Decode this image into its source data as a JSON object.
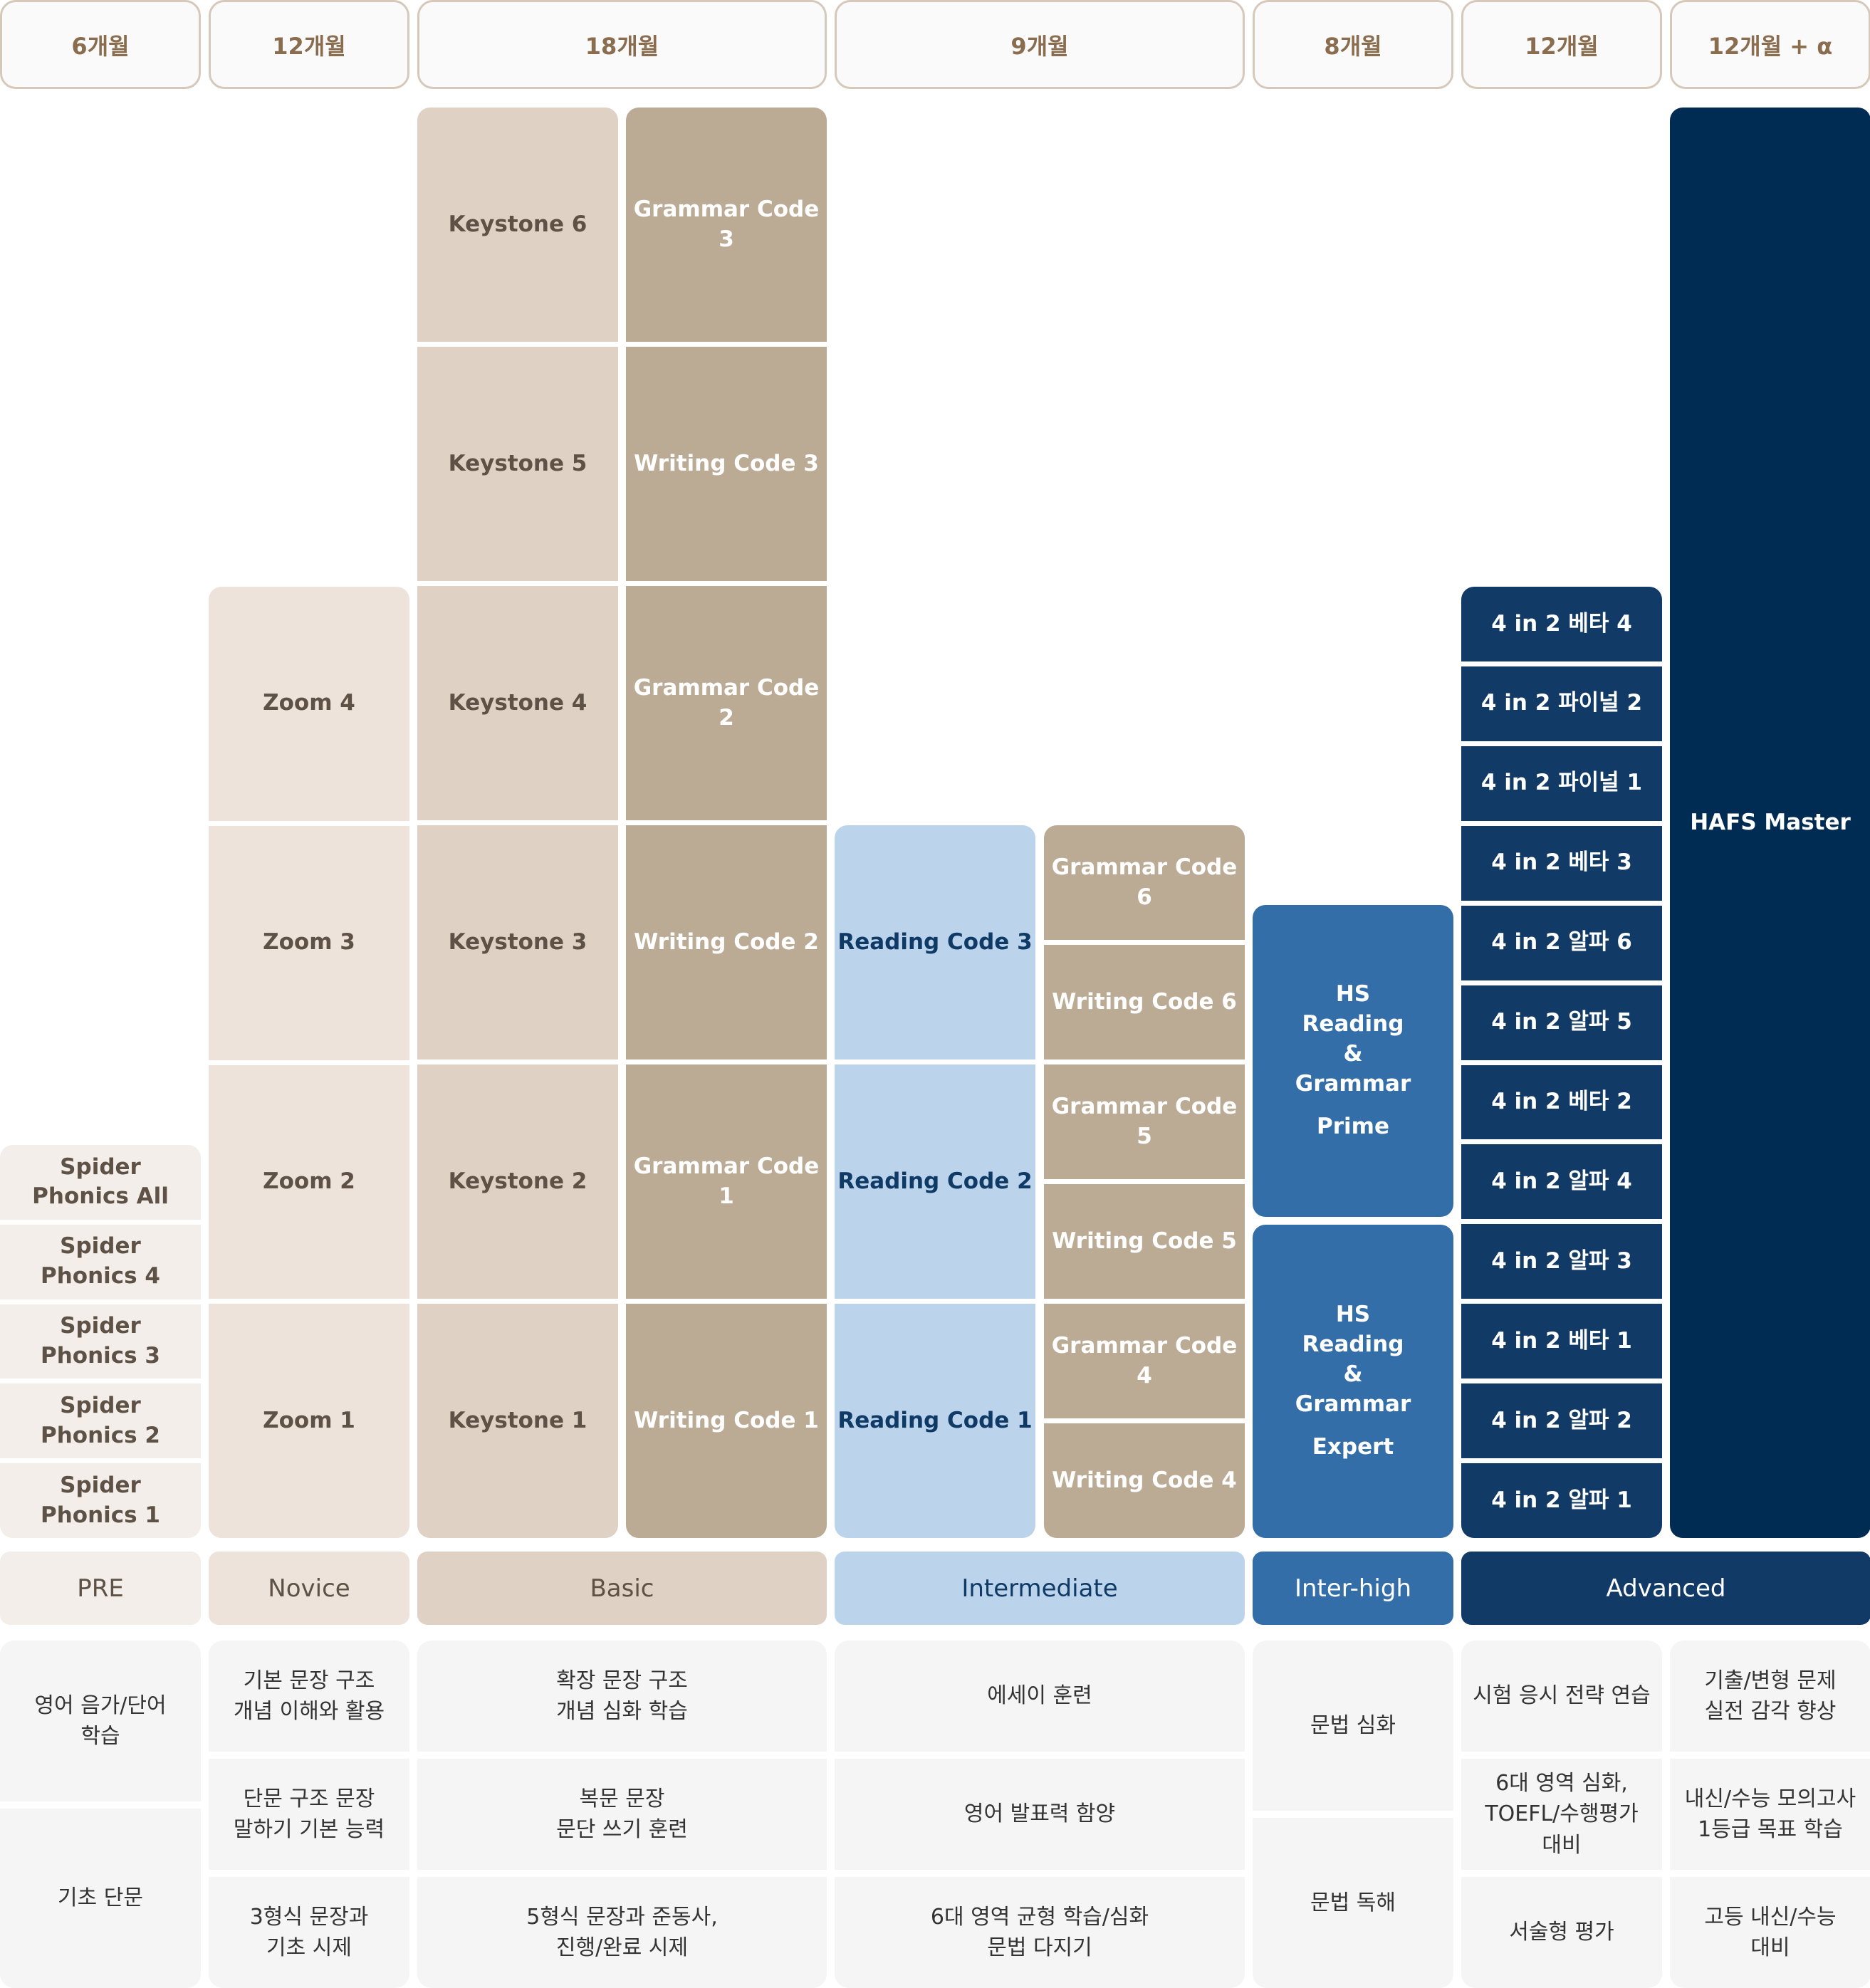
{
  "durations": [
    "6개월",
    "12개월",
    "18개월",
    "9개월",
    "8개월",
    "12개월",
    "12개월 + α"
  ],
  "colors": {
    "header_text": "#8a6d4f",
    "header_border": "#d6c9bb",
    "pre": "#f3eeea",
    "novice": "#ede3da",
    "basic": "#dfd2c4",
    "tan": "#bbab95",
    "intermediate": "#bcd4eb",
    "inter_high": "#336ea8",
    "advanced": "#113a66",
    "master": "#002c53",
    "desc_bg": "#f4f5f4"
  },
  "programs": {
    "spider": [
      "Spider\nPhonics All",
      "Spider\nPhonics 4",
      "Spider\nPhonics 3",
      "Spider\nPhonics 2",
      "Spider\nPhonics 1"
    ],
    "zoom": [
      "Zoom 4",
      "Zoom 3",
      "Zoom 2",
      "Zoom 1"
    ],
    "keystone": [
      "Keystone 6",
      "Keystone 5",
      "Keystone 4",
      "Keystone 3",
      "Keystone 2",
      "Keystone 1"
    ],
    "code_basic": [
      "Grammar Code 3",
      "Writing Code 3",
      "Grammar Code 2",
      "Writing Code 2",
      "Grammar Code 1",
      "Writing Code 1"
    ],
    "reading": [
      "Reading Code 3",
      "Reading Code 2",
      "Reading Code 1"
    ],
    "code_intermediate": [
      "Grammar Code 6",
      "Writing Code 6",
      "Grammar Code 5",
      "Writing Code 5",
      "Grammar Code 4",
      "Writing Code 4"
    ],
    "hs": [
      {
        "title": "HS\nReading\n&\nGrammar",
        "sub": "Prime"
      },
      {
        "title": "HS\nReading\n&\nGrammar",
        "sub": "Expert"
      }
    ],
    "four_in_two": [
      "4 in 2 베타 4",
      "4 in 2 파이널 2",
      "4 in 2 파이널 1",
      "4 in 2 베타 3",
      "4 in 2 알파 6",
      "4 in 2 알파 5",
      "4 in 2 베타 2",
      "4 in 2 알파 4",
      "4 in 2 알파 3",
      "4 in 2 베타 1",
      "4 in 2 알파 2",
      "4 in 2 알파 1"
    ],
    "master": [
      "HAFS Master"
    ]
  },
  "levels": [
    "PRE",
    "Novice",
    "Basic",
    "Intermediate",
    "Inter-high",
    "Advanced"
  ],
  "descriptions": [
    [
      "영어 음가/단어\n학습",
      "기초 단문"
    ],
    [
      "기본 문장 구조\n개념 이해와 활용",
      "단문 구조 문장\n말하기 기본 능력",
      "3형식 문장과\n기초 시제"
    ],
    [
      "확장 문장 구조\n개념 심화 학습",
      "복문 문장\n문단 쓰기 훈련",
      "5형식 문장과 준동사,\n진행/완료 시제"
    ],
    [
      "에세이 훈련",
      "영어 발표력 함양",
      "6대 영역 균형 학습/심화\n문법 다지기"
    ],
    [
      "문법 심화",
      "문법 독해"
    ],
    [
      "시험 응시 전략 연습",
      "6대 영역 심화,\nTOEFL/수행평가\n대비",
      "서술형 평가"
    ],
    [
      "기출/변형 문제\n실전 감각 향상",
      "내신/수능 모의고사\n1등급 목표 학습",
      "고등 내신/수능\n대비"
    ]
  ]
}
